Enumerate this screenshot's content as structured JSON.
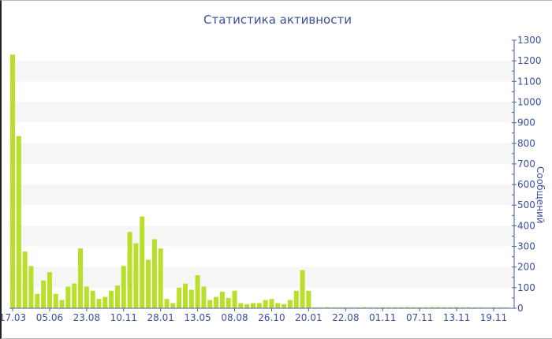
{
  "chart_data": {
    "type": "bar",
    "title": "Статистика активности",
    "ylabel": "Сообщений",
    "xlabel": "",
    "ylim": [
      0,
      1300
    ],
    "y_ticks": [
      0,
      100,
      200,
      300,
      400,
      500,
      600,
      700,
      800,
      900,
      1000,
      1100,
      1200,
      1300
    ],
    "y_axis_side": "right",
    "grid": "alternating horizontal bands every 100",
    "x_tick_labels": [
      "17.03",
      "05.06",
      "23.08",
      "10.11",
      "28.01",
      "13.05",
      "08.08",
      "26.10",
      "20.01",
      "22.08",
      "01.11",
      "07.11",
      "13.11",
      "19.11"
    ],
    "x_tick_every": 6,
    "values": [
      1230,
      835,
      275,
      205,
      70,
      135,
      175,
      70,
      40,
      105,
      120,
      290,
      105,
      85,
      45,
      55,
      85,
      110,
      205,
      370,
      315,
      445,
      235,
      335,
      290,
      45,
      25,
      100,
      120,
      90,
      160,
      105,
      40,
      55,
      80,
      50,
      85,
      25,
      20,
      25,
      25,
      40,
      45,
      25,
      20,
      40,
      85,
      185,
      85,
      4,
      4,
      5,
      4,
      4,
      4,
      4,
      4,
      5,
      4,
      4,
      5,
      5,
      5,
      5,
      6,
      5,
      4,
      5,
      6,
      6,
      5,
      5,
      6,
      5,
      5,
      4,
      4,
      3,
      5,
      4,
      4
    ],
    "colors": {
      "bar": "#b8e02a",
      "axis": "#4a5ea8",
      "band": "#f6f6f6"
    }
  }
}
